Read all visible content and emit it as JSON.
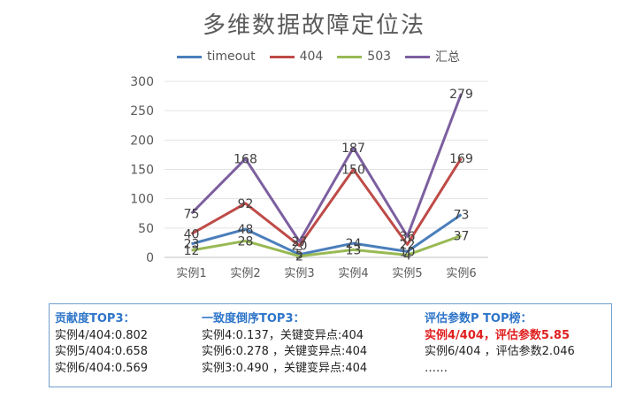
{
  "chart_data": {
    "type": "line",
    "title": "多维数据故障定位法",
    "categories": [
      "实例1",
      "实例2",
      "实例3",
      "实例4",
      "实例5",
      "实例6"
    ],
    "ylim": [
      0,
      300
    ],
    "yticks": [
      0,
      50,
      100,
      150,
      200,
      250,
      300
    ],
    "grid": true,
    "legend_position": "top",
    "series": [
      {
        "name": "timeout",
        "color": "#4a7ebb",
        "values": [
          23,
          48,
          5,
          24,
          10,
          73
        ],
        "labels": [
          "23",
          "48",
          "5",
          "24",
          "10",
          "73"
        ]
      },
      {
        "name": "404",
        "color": "#be4b48",
        "values": [
          40,
          92,
          20,
          150,
          22,
          169
        ],
        "labels": [
          "40",
          "92",
          "20",
          "150",
          "22",
          "169"
        ]
      },
      {
        "name": "503",
        "color": "#98b954",
        "values": [
          12,
          28,
          2,
          13,
          4,
          37
        ],
        "labels": [
          "12",
          "28",
          "2",
          "13",
          "4",
          "37"
        ]
      },
      {
        "name": "汇总",
        "color": "#7d5fa0",
        "values": [
          75,
          168,
          27,
          187,
          36,
          279
        ],
        "labels": [
          "75",
          "168",
          "27",
          "187",
          "36",
          "279"
        ]
      }
    ]
  },
  "info": {
    "contribution": {
      "heading": "贡献度TOP3：",
      "lines": [
        "实例4/404:0.802",
        "实例5/404:0.658",
        "实例6/404:0.569"
      ]
    },
    "consistency": {
      "heading": "一致度倒序TOP3：",
      "lines": [
        "实例4:0.137，关键变异点:404",
        "实例6:0.278 ，关键变异点:404",
        "实例3:0.490 ，关键变异点:404"
      ]
    },
    "evaluation": {
      "heading": "评估参数P TOP榜：",
      "highlight": "实例4/404，评估参数5.85",
      "lines": [
        "实例6/404 ，评估参数2.046",
        "……"
      ]
    }
  }
}
